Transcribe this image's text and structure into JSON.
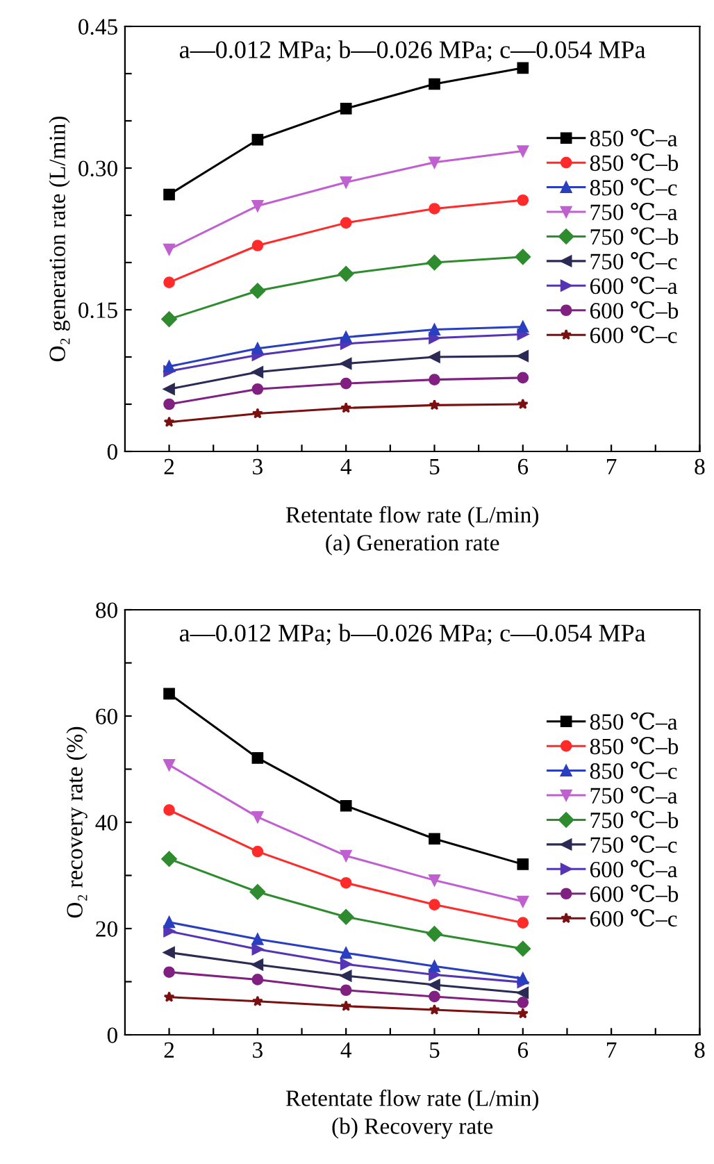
{
  "chart_data": [
    {
      "type": "line",
      "title": "(a) Generation rate",
      "xlabel": "Retentate flow rate (L/min)",
      "ylabel": "O₂ generation rate (L/min)",
      "annotations": [
        "a—0.012 MPa; b—0.026 MPa; c—0.054 MPa"
      ],
      "x": [
        2,
        3,
        4,
        5,
        6
      ],
      "xlim": [
        1.5,
        8
      ],
      "xticks": [
        2,
        {
          "value": 2.5,
          "label": null
        },
        3,
        {
          "value": 3.5,
          "label": null
        },
        4,
        {
          "value": 4.5,
          "label": null
        },
        5,
        {
          "value": 5.5,
          "label": null
        },
        6,
        {
          "value": 6.5,
          "label": null
        },
        7,
        {
          "value": 7.5,
          "label": null
        },
        8
      ],
      "ylim": [
        0,
        0.45
      ],
      "yticks": [
        0,
        {
          "value": 0.05,
          "label": null
        },
        {
          "value": 0.1,
          "label": null
        },
        {
          "value": 0.15,
          "label": "0.15"
        },
        {
          "value": 0.2,
          "label": null
        },
        {
          "value": 0.25,
          "label": null
        },
        {
          "value": 0.3,
          "label": "0.30"
        },
        {
          "value": 0.35,
          "label": null
        },
        {
          "value": 0.4,
          "label": null
        },
        {
          "value": 0.45,
          "label": "0.45"
        }
      ],
      "grid": false,
      "legend": "right",
      "series": [
        {
          "name": "850 ℃–a",
          "color": "#000000",
          "marker": "square",
          "values": [
            0.272,
            0.33,
            0.363,
            0.389,
            0.406
          ]
        },
        {
          "name": "850 ℃–b",
          "color": "#ff2a2a",
          "marker": "circle",
          "values": [
            0.179,
            0.218,
            0.242,
            0.257,
            0.266
          ]
        },
        {
          "name": "850 ℃–c",
          "color": "#2a3fbf",
          "marker": "triangle",
          "values": [
            0.09,
            0.109,
            0.121,
            0.129,
            0.132
          ]
        },
        {
          "name": "750 ℃–a",
          "color": "#c060d0",
          "marker": "triangle-down",
          "values": [
            0.214,
            0.26,
            0.285,
            0.306,
            0.318
          ]
        },
        {
          "name": "750 ℃–b",
          "color": "#2e8b2e",
          "marker": "diamond",
          "values": [
            0.14,
            0.17,
            0.188,
            0.2,
            0.206
          ]
        },
        {
          "name": "750 ℃–c",
          "color": "#2a2a55",
          "marker": "triangle-left",
          "values": [
            0.066,
            0.084,
            0.093,
            0.1,
            0.101
          ]
        },
        {
          "name": "600 ℃–a",
          "color": "#5535b5",
          "marker": "triangle-right",
          "values": [
            0.085,
            0.102,
            0.114,
            0.12,
            0.124
          ]
        },
        {
          "name": "600 ℃–b",
          "color": "#802080",
          "marker": "circle",
          "values": [
            0.05,
            0.066,
            0.072,
            0.076,
            0.078
          ]
        },
        {
          "name": "600 ℃–c",
          "color": "#7a1010",
          "marker": "star",
          "values": [
            0.031,
            0.04,
            0.046,
            0.049,
            0.05
          ]
        }
      ]
    },
    {
      "type": "line",
      "title": "(b) Recovery rate",
      "xlabel": "Retentate flow rate (L/min)",
      "ylabel": "O₂ recovery rate (%)",
      "annotations": [
        "a—0.012 MPa; b—0.026 MPa; c—0.054 MPa"
      ],
      "x": [
        2,
        3,
        4,
        5,
        6
      ],
      "xlim": [
        1.5,
        8
      ],
      "xticks": [
        2,
        {
          "value": 2.5,
          "label": null
        },
        3,
        {
          "value": 3.5,
          "label": null
        },
        4,
        {
          "value": 4.5,
          "label": null
        },
        5,
        {
          "value": 5.5,
          "label": null
        },
        6,
        {
          "value": 6.5,
          "label": null
        },
        7,
        {
          "value": 7.5,
          "label": null
        },
        8
      ],
      "ylim": [
        0,
        80
      ],
      "yticks": [
        0,
        {
          "value": 10,
          "label": null
        },
        20,
        {
          "value": 30,
          "label": null
        },
        40,
        {
          "value": 50,
          "label": null
        },
        60,
        {
          "value": 70,
          "label": null
        },
        80
      ],
      "grid": false,
      "legend": "right",
      "series": [
        {
          "name": "850 ℃–a",
          "color": "#000000",
          "marker": "square",
          "values": [
            64.2,
            52.1,
            43.1,
            36.9,
            32.1
          ]
        },
        {
          "name": "850 ℃–b",
          "color": "#ff2a2a",
          "marker": "circle",
          "values": [
            42.3,
            34.5,
            28.6,
            24.5,
            21.1
          ]
        },
        {
          "name": "850 ℃–c",
          "color": "#2a3fbf",
          "marker": "triangle",
          "values": [
            21.2,
            18.0,
            15.4,
            12.9,
            10.6
          ]
        },
        {
          "name": "750 ℃–a",
          "color": "#c060d0",
          "marker": "triangle-down",
          "values": [
            50.8,
            41.0,
            33.7,
            29.1,
            25.1
          ]
        },
        {
          "name": "750 ℃–b",
          "color": "#2e8b2e",
          "marker": "diamond",
          "values": [
            33.1,
            26.9,
            22.2,
            19.0,
            16.2
          ]
        },
        {
          "name": "750 ℃–c",
          "color": "#2a2a55",
          "marker": "triangle-left",
          "values": [
            15.5,
            13.2,
            11.1,
            9.4,
            7.9
          ]
        },
        {
          "name": "600 ℃–a",
          "color": "#5535b5",
          "marker": "triangle-right",
          "values": [
            19.5,
            16.1,
            13.3,
            11.3,
            9.9
          ]
        },
        {
          "name": "600 ℃–b",
          "color": "#802080",
          "marker": "circle",
          "values": [
            11.8,
            10.4,
            8.4,
            7.2,
            6.1
          ]
        },
        {
          "name": "600 ℃–c",
          "color": "#7a1010",
          "marker": "star",
          "values": [
            7.1,
            6.3,
            5.4,
            4.7,
            4.0
          ]
        }
      ]
    }
  ]
}
